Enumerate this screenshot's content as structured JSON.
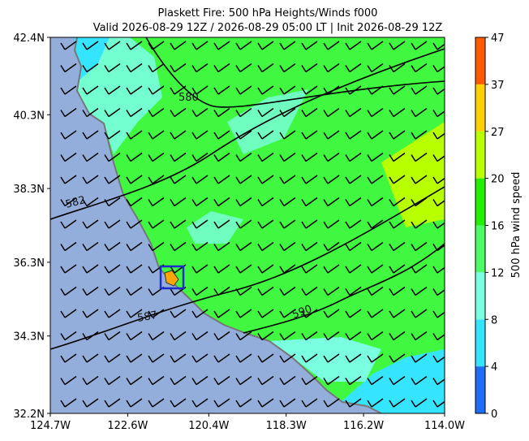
{
  "title": "Plaskett Fire: 500 hPa Heights/Winds f000",
  "subtitle": "Valid 2026-08-29 12Z / 2026-08-29 05:00 LT | Init 2026-08-29 12Z",
  "map": {
    "xlim": [
      -124.7,
      -114.0
    ],
    "ylim": [
      32.2,
      42.4
    ],
    "xticks": [
      {
        "value": -124.7,
        "label": "124.7W"
      },
      {
        "value": -122.6,
        "label": "122.6W"
      },
      {
        "value": -120.4,
        "label": "120.4W"
      },
      {
        "value": -118.3,
        "label": "118.3W"
      },
      {
        "value": -116.2,
        "label": "116.2W"
      },
      {
        "value": -114.0,
        "label": "114.0W"
      }
    ],
    "yticks": [
      {
        "value": 32.2,
        "label": "32.2N"
      },
      {
        "value": 34.3,
        "label": "34.3N"
      },
      {
        "value": 36.3,
        "label": "36.3N"
      },
      {
        "value": 38.3,
        "label": "38.3N"
      },
      {
        "value": 40.3,
        "label": "40.3N"
      },
      {
        "value": 42.4,
        "label": "42.4N"
      }
    ],
    "contour_labels": [
      "580",
      "582",
      "587",
      "590"
    ]
  },
  "colorbar": {
    "label": "500 hPa wind speed",
    "ticks": [
      0,
      4,
      8,
      12,
      16,
      20,
      27,
      37,
      47
    ],
    "colors": [
      "#1f6cf5",
      "#35e4ff",
      "#7affe0",
      "#4dfc66",
      "#22f000",
      "#b8ff00",
      "#ffd000",
      "#ff5a00"
    ]
  }
}
